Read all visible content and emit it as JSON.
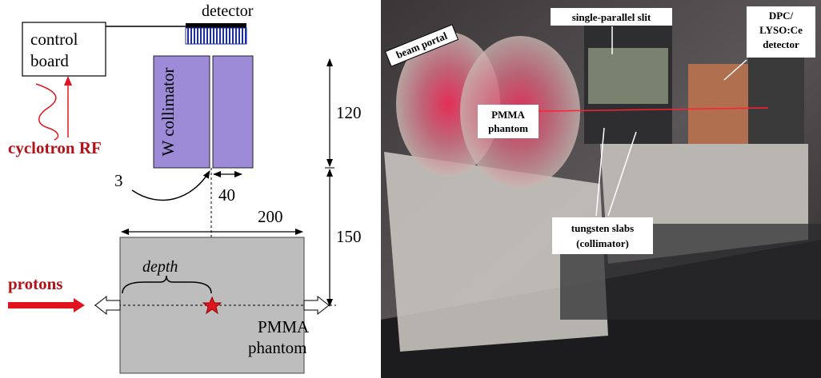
{
  "schematic": {
    "detector": "detector",
    "control_board": [
      "control",
      "board"
    ],
    "cyclotron_rf": "cyclotron RF",
    "w_collimator": "W collimator",
    "dimensions": {
      "collimator_height": 120,
      "phantom_to_collimator": 150,
      "slit_width": 3,
      "slab_width": 40,
      "phantom_width": 200
    },
    "depth": "depth",
    "protons": "protons",
    "phantom": [
      "PMMA",
      "phantom"
    ]
  },
  "photo": {
    "beam_portal": "beam portal",
    "single_parallel_slit": "single-parallel slit",
    "pmma_phantom": [
      "PMMA",
      "phantom"
    ],
    "detector": [
      "DPC/",
      "LYSO:Ce",
      "detector"
    ],
    "tungsten_slabs": [
      "tungsten slabs",
      "(collimator)"
    ]
  }
}
